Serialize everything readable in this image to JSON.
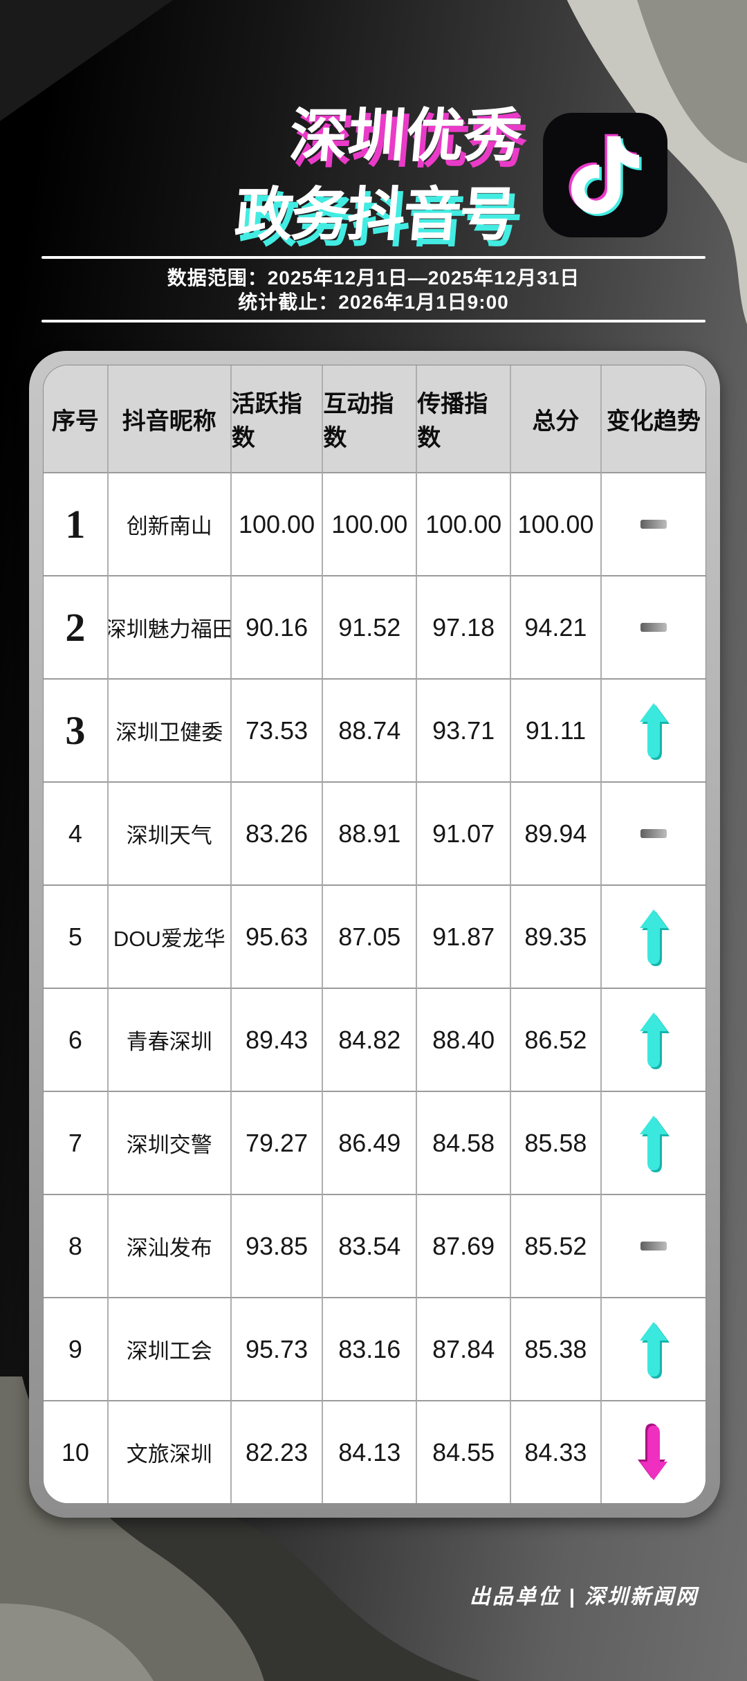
{
  "title": {
    "line1": "深圳优秀",
    "line2": "政务抖音号"
  },
  "meta": {
    "line1": "数据范围：2025年12月1日—2025年12月31日",
    "line2": "统计截止：2026年1月1日9:00"
  },
  "footer": {
    "credit": "出品单位 | 深圳新闻网"
  },
  "colors": {
    "title_shadow_magenta": "#ea3bc8",
    "title_shadow_cyan": "#43ece2",
    "trend_up_cyan": "#3be8dd",
    "trend_down_magenta": "#ee2fc0",
    "trend_flat_gray": "#8a8a8a",
    "header_bg": "#d6d6d6",
    "card_ring": "#adadad",
    "douyin_icon_bg": "#0a0a0d"
  },
  "icons": {
    "douyin_logo": "tiktok-musical-note",
    "trend_up": "cyan-up-arrow",
    "trend_down": "magenta-down-arrow",
    "trend_flat": "gray-dash"
  },
  "chart_data": {
    "type": "table",
    "title": "深圳优秀政务抖音号",
    "subtitle_lines": [
      "数据范围：2025年12月1日—2025年12月31日",
      "统计截止：2026年1月1日9:00"
    ],
    "columns": [
      "序号",
      "抖音昵称",
      "活跃指数",
      "互动指数",
      "传播指数",
      "总分",
      "变化趋势"
    ],
    "rows": [
      [
        "1",
        "创新南山",
        "100.00",
        "100.00",
        "100.00",
        "100.00",
        "flat"
      ],
      [
        "2",
        "深圳魅力福田",
        "90.16",
        "91.52",
        "97.18",
        "94.21",
        "flat"
      ],
      [
        "3",
        "深圳卫健委",
        "73.53",
        "88.74",
        "93.71",
        "91.11",
        "up"
      ],
      [
        "4",
        "深圳天气",
        "83.26",
        "88.91",
        "91.07",
        "89.94",
        "flat"
      ],
      [
        "5",
        "DOU爱龙华",
        "95.63",
        "87.05",
        "91.87",
        "89.35",
        "up"
      ],
      [
        "6",
        "青春深圳",
        "89.43",
        "84.82",
        "88.40",
        "86.52",
        "up"
      ],
      [
        "7",
        "深圳交警",
        "79.27",
        "86.49",
        "84.58",
        "85.58",
        "up"
      ],
      [
        "8",
        "深汕发布",
        "93.85",
        "83.54",
        "87.69",
        "85.52",
        "flat"
      ],
      [
        "9",
        "深圳工会",
        "95.73",
        "83.16",
        "87.84",
        "85.38",
        "up"
      ],
      [
        "10",
        "文旅深圳",
        "82.23",
        "84.13",
        "84.55",
        "84.33",
        "down"
      ]
    ]
  }
}
